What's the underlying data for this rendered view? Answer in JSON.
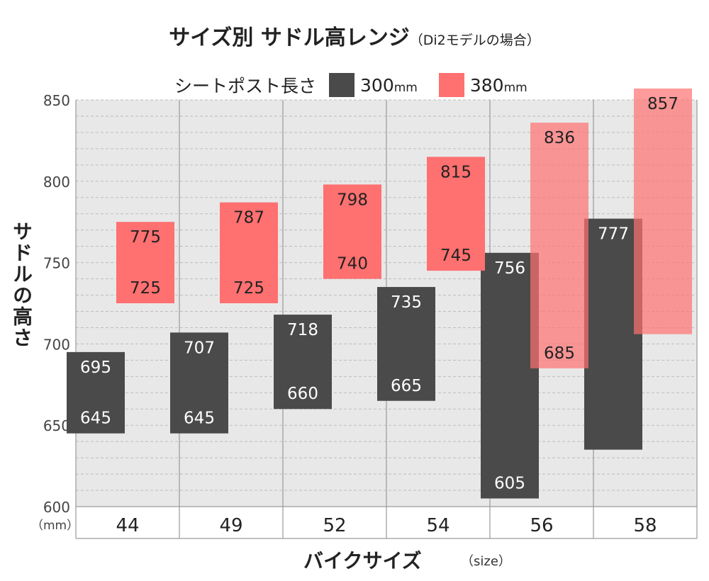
{
  "chart_data": {
    "type": "bar",
    "title": "サイズ別 サドル高レンジ",
    "subtitle": "（Di2モデルの場合）",
    "legend_title": "シートポスト長さ",
    "legend_position": "top",
    "xlabel": "バイクサイズ",
    "xlabel_unit": "（size）",
    "ylabel": "サドルの高さ",
    "y_unit": "（mm）",
    "ylim": [
      600,
      850
    ],
    "yticks": [
      600,
      650,
      700,
      750,
      800,
      850
    ],
    "categories": [
      "44",
      "49",
      "52",
      "54",
      "56",
      "58"
    ],
    "series": [
      {
        "name": "300",
        "unit": "mm",
        "color": "#4a4a4a",
        "low": [
          645,
          645,
          660,
          665,
          605,
          635
        ],
        "high": [
          695,
          707,
          718,
          735,
          756,
          777
        ],
        "low_labels": [
          "645",
          "645",
          "660",
          "665",
          "605",
          ""
        ],
        "high_labels": [
          "695",
          "707",
          "718",
          "735",
          "756",
          "777"
        ]
      },
      {
        "name": "380",
        "unit": "mm",
        "color": "#ff7070",
        "low": [
          725,
          725,
          740,
          745,
          685,
          706
        ],
        "high": [
          775,
          787,
          798,
          815,
          836,
          857
        ],
        "low_labels": [
          "725",
          "725",
          "740",
          "745",
          "685",
          ""
        ],
        "high_labels": [
          "775",
          "787",
          "798",
          "815",
          "836",
          "857"
        ]
      }
    ]
  }
}
